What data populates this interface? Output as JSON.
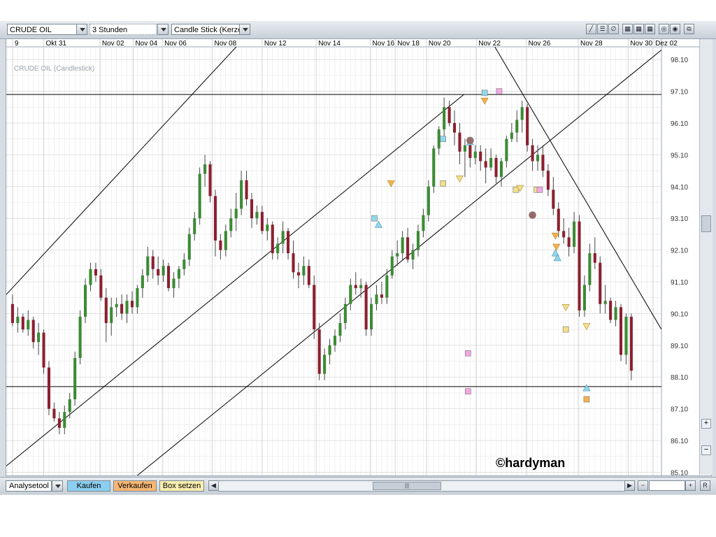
{
  "toolbar": {
    "symbol": "CRUDE OIL",
    "interval": "3 Stunden",
    "chart_type": "Candle Stick (Kerze"
  },
  "series_label": "CRUDE OIL (Candlestick)",
  "watermark": "©hardyman",
  "bottom": {
    "analysis_tool": "Analysetool",
    "buy": "Kaufen",
    "sell": "Verkaufen",
    "box": "Box setzen",
    "reset": "R"
  },
  "colors": {
    "up": "#3c8a35",
    "down": "#8b2030",
    "grid": "#e8e8e8",
    "marker_cyan": "#8fd8ec",
    "marker_pink": "#f2a8e2",
    "marker_orange": "#f4b24a",
    "marker_yellow": "#f1df8a",
    "marker_brown": "#9a6a6a"
  },
  "chart_data": {
    "type": "candlestick",
    "ylim": [
      85.0,
      98.5
    ],
    "xlim": [
      -0.3,
      31.2
    ],
    "yticks": [
      "85.10",
      "86.10",
      "87.10",
      "88.10",
      "89.10",
      "90.10",
      "91.10",
      "92.10",
      "93.10",
      "94.10",
      "95.10",
      "96.10",
      "97.10",
      "98.10"
    ],
    "xtick_labels": [
      {
        "t": 0,
        "label": "9"
      },
      {
        "t": 1.5,
        "label": "Okt 31"
      },
      {
        "t": 4.2,
        "label": "Nov 02"
      },
      {
        "t": 5.8,
        "label": "Nov 04"
      },
      {
        "t": 7.2,
        "label": "Nov 06"
      },
      {
        "t": 9.6,
        "label": "Nov 08"
      },
      {
        "t": 12.0,
        "label": "Nov 12"
      },
      {
        "t": 14.6,
        "label": "Nov 14"
      },
      {
        "t": 17.2,
        "label": "Nov 16"
      },
      {
        "t": 18.4,
        "label": "Nov 18"
      },
      {
        "t": 19.9,
        "label": "Nov 20"
      },
      {
        "t": 22.3,
        "label": "Nov 22"
      },
      {
        "t": 24.7,
        "label": "Nov 26"
      },
      {
        "t": 27.2,
        "label": "Nov 28"
      },
      {
        "t": 29.6,
        "label": "Nov 30"
      },
      {
        "t": 30.8,
        "label": "Dez 02"
      }
    ],
    "candles": [
      [
        0.0,
        90.4,
        90.7,
        89.7,
        89.8
      ],
      [
        0.25,
        89.8,
        90.3,
        89.5,
        90.0
      ],
      [
        0.5,
        90.0,
        90.1,
        89.5,
        89.6
      ],
      [
        0.75,
        89.6,
        90.2,
        89.4,
        89.9
      ],
      [
        1.0,
        89.9,
        90.0,
        89.0,
        89.2
      ],
      [
        1.25,
        89.2,
        89.8,
        88.8,
        89.5
      ],
      [
        1.5,
        89.5,
        89.6,
        88.2,
        88.4
      ],
      [
        1.75,
        88.4,
        88.6,
        86.9,
        87.1
      ],
      [
        2.0,
        87.1,
        87.3,
        86.7,
        86.8
      ],
      [
        2.25,
        86.8,
        87.0,
        86.3,
        86.5
      ],
      [
        2.5,
        86.5,
        87.2,
        86.3,
        87.0
      ],
      [
        2.75,
        87.0,
        87.6,
        86.8,
        87.4
      ],
      [
        3.0,
        87.4,
        88.9,
        87.2,
        88.7
      ],
      [
        3.25,
        88.7,
        90.2,
        88.5,
        90.0
      ],
      [
        3.5,
        90.0,
        91.2,
        89.8,
        91.0
      ],
      [
        3.75,
        91.0,
        91.7,
        90.8,
        91.5
      ],
      [
        4.0,
        91.5,
        91.7,
        91.1,
        91.3
      ],
      [
        4.25,
        91.3,
        91.5,
        90.5,
        90.6
      ],
      [
        4.5,
        90.6,
        90.9,
        89.2,
        89.8
      ],
      [
        4.75,
        89.8,
        90.6,
        89.4,
        90.3
      ],
      [
        5.0,
        90.3,
        90.6,
        90.0,
        90.4
      ],
      [
        5.25,
        90.4,
        90.7,
        89.9,
        90.1
      ],
      [
        5.5,
        90.1,
        90.7,
        89.8,
        90.5
      ],
      [
        5.75,
        90.5,
        90.8,
        90.1,
        90.3
      ],
      [
        6.0,
        90.3,
        91.0,
        90.1,
        90.9
      ],
      [
        6.25,
        90.9,
        91.5,
        90.6,
        91.3
      ],
      [
        6.5,
        91.3,
        92.2,
        91.1,
        91.9
      ],
      [
        6.75,
        91.9,
        92.1,
        91.2,
        91.5
      ],
      [
        7.0,
        91.5,
        91.9,
        91.0,
        91.3
      ],
      [
        7.25,
        91.3,
        91.8,
        91.1,
        91.6
      ],
      [
        7.5,
        91.6,
        91.7,
        90.8,
        90.9
      ],
      [
        7.75,
        90.9,
        91.4,
        90.6,
        91.2
      ],
      [
        8.0,
        91.2,
        91.6,
        90.9,
        91.5
      ],
      [
        8.25,
        91.5,
        92.0,
        91.3,
        91.8
      ],
      [
        8.5,
        91.8,
        92.8,
        91.6,
        92.6
      ],
      [
        8.75,
        92.6,
        93.3,
        92.4,
        93.1
      ],
      [
        9.0,
        93.1,
        94.7,
        92.9,
        94.5
      ],
      [
        9.25,
        94.5,
        95.1,
        94.1,
        94.8
      ],
      [
        9.5,
        94.8,
        94.9,
        93.6,
        93.8
      ],
      [
        9.75,
        93.8,
        94.0,
        91.9,
        92.4
      ],
      [
        10.0,
        92.4,
        92.6,
        91.8,
        92.1
      ],
      [
        10.25,
        92.1,
        92.9,
        91.9,
        92.7
      ],
      [
        10.5,
        92.7,
        93.4,
        92.5,
        93.1
      ],
      [
        10.75,
        93.1,
        93.9,
        92.7,
        93.4
      ],
      [
        11.0,
        93.4,
        94.6,
        93.2,
        94.3
      ],
      [
        11.25,
        94.3,
        94.6,
        93.5,
        93.7
      ],
      [
        11.5,
        93.7,
        93.9,
        92.8,
        93.1
      ],
      [
        11.75,
        93.1,
        93.5,
        92.9,
        93.3
      ],
      [
        12.0,
        93.3,
        93.5,
        92.6,
        92.7
      ],
      [
        12.25,
        92.7,
        93.1,
        92.4,
        92.9
      ],
      [
        12.5,
        92.9,
        93.0,
        91.8,
        92.0
      ],
      [
        12.75,
        92.0,
        92.5,
        91.8,
        92.3
      ],
      [
        13.0,
        92.3,
        93.0,
        92.0,
        92.7
      ],
      [
        13.25,
        92.7,
        92.8,
        91.8,
        92.0
      ],
      [
        13.5,
        92.0,
        92.4,
        91.2,
        91.4
      ],
      [
        13.75,
        91.4,
        91.7,
        90.9,
        91.3
      ],
      [
        14.0,
        91.3,
        91.9,
        91.0,
        91.6
      ],
      [
        14.25,
        91.6,
        91.8,
        90.9,
        91.0
      ],
      [
        14.5,
        91.0,
        91.3,
        89.3,
        89.6
      ],
      [
        14.75,
        89.6,
        89.8,
        88.0,
        88.2
      ],
      [
        15.0,
        88.2,
        89.0,
        88.0,
        88.8
      ],
      [
        15.25,
        88.8,
        89.3,
        88.5,
        89.1
      ],
      [
        15.5,
        89.1,
        89.6,
        88.9,
        89.4
      ],
      [
        15.75,
        89.4,
        90.1,
        89.2,
        89.8
      ],
      [
        16.0,
        89.8,
        90.6,
        89.6,
        90.4
      ],
      [
        16.25,
        90.4,
        91.2,
        90.2,
        91.0
      ],
      [
        16.5,
        91.0,
        91.4,
        90.7,
        90.9
      ],
      [
        16.75,
        90.9,
        91.2,
        90.6,
        91.0
      ],
      [
        17.0,
        91.0,
        91.1,
        89.4,
        89.6
      ],
      [
        17.25,
        89.6,
        90.6,
        89.4,
        90.4
      ],
      [
        17.5,
        90.4,
        91.0,
        90.2,
        90.7
      ],
      [
        17.75,
        90.7,
        91.1,
        90.4,
        90.6
      ],
      [
        18.0,
        90.6,
        91.5,
        90.4,
        91.3
      ],
      [
        18.25,
        91.3,
        92.1,
        91.2,
        91.9
      ],
      [
        18.5,
        91.9,
        92.4,
        91.6,
        92.0
      ],
      [
        18.75,
        92.0,
        92.7,
        91.8,
        92.5
      ],
      [
        19.0,
        92.5,
        92.8,
        91.7,
        91.8
      ],
      [
        19.25,
        91.8,
        92.3,
        91.5,
        92.1
      ],
      [
        19.5,
        92.1,
        92.9,
        91.9,
        92.7
      ],
      [
        19.75,
        92.7,
        93.4,
        92.5,
        93.2
      ],
      [
        20.0,
        93.2,
        94.3,
        93.0,
        94.1
      ],
      [
        20.25,
        94.1,
        95.4,
        93.9,
        95.3
      ],
      [
        20.5,
        95.3,
        96.0,
        95.1,
        95.9
      ],
      [
        20.75,
        95.9,
        96.9,
        95.7,
        96.6
      ],
      [
        21.0,
        96.6,
        96.8,
        96.0,
        96.1
      ],
      [
        21.25,
        96.1,
        96.5,
        95.4,
        95.8
      ],
      [
        21.5,
        95.8,
        96.1,
        94.8,
        95.2
      ],
      [
        21.75,
        95.2,
        95.6,
        94.4,
        95.4
      ],
      [
        22.0,
        95.4,
        95.6,
        94.7,
        95.0
      ],
      [
        22.25,
        95.0,
        95.4,
        94.8,
        95.2
      ],
      [
        22.5,
        95.2,
        95.4,
        94.6,
        94.9
      ],
      [
        22.75,
        94.9,
        95.3,
        94.2,
        94.7
      ],
      [
        23.0,
        94.7,
        95.3,
        94.6,
        95.0
      ],
      [
        23.25,
        95.0,
        95.1,
        94.2,
        94.4
      ],
      [
        23.5,
        94.4,
        95.0,
        94.1,
        94.9
      ],
      [
        23.75,
        94.9,
        95.7,
        94.7,
        95.6
      ],
      [
        24.0,
        95.6,
        96.1,
        95.5,
        95.8
      ],
      [
        24.25,
        95.8,
        96.5,
        95.5,
        96.2
      ],
      [
        24.5,
        96.2,
        96.8,
        95.8,
        96.6
      ],
      [
        24.75,
        96.6,
        96.7,
        95.2,
        95.4
      ],
      [
        25.0,
        95.4,
        95.6,
        94.6,
        94.9
      ],
      [
        25.25,
        94.9,
        95.4,
        94.6,
        95.1
      ],
      [
        25.5,
        95.1,
        95.4,
        94.4,
        94.6
      ],
      [
        25.75,
        94.6,
        94.8,
        93.8,
        94.0
      ],
      [
        26.0,
        94.0,
        94.4,
        93.2,
        93.4
      ],
      [
        26.25,
        93.4,
        93.6,
        92.5,
        92.7
      ],
      [
        26.5,
        92.7,
        93.1,
        92.3,
        92.5
      ],
      [
        26.75,
        92.5,
        92.8,
        91.9,
        92.2
      ],
      [
        27.0,
        92.2,
        93.3,
        92.0,
        93.0
      ],
      [
        27.25,
        93.0,
        93.2,
        90.0,
        90.2
      ],
      [
        27.5,
        90.2,
        91.3,
        90.0,
        91.0
      ],
      [
        27.75,
        91.0,
        92.3,
        90.8,
        92.0
      ],
      [
        28.0,
        92.0,
        92.5,
        91.5,
        91.7
      ],
      [
        28.25,
        91.7,
        91.9,
        90.1,
        90.4
      ],
      [
        28.5,
        90.4,
        91.0,
        90.1,
        90.5
      ],
      [
        28.75,
        90.5,
        90.6,
        89.8,
        89.9
      ],
      [
        29.0,
        89.9,
        90.5,
        89.7,
        90.3
      ],
      [
        29.25,
        90.3,
        90.4,
        88.6,
        88.8
      ],
      [
        29.5,
        88.8,
        90.1,
        88.5,
        90.0
      ],
      [
        29.75,
        90.0,
        90.1,
        88.0,
        88.3
      ]
    ],
    "horizontal_lines": [
      97.0,
      87.8
    ],
    "trend_lines": [
      {
        "t1": -0.3,
        "p1": 90.7,
        "t2": 10.9,
        "p2": 98.6
      },
      {
        "t1": -0.3,
        "p1": 85.3,
        "t2": 21.7,
        "p2": 97.0
      },
      {
        "t1": 6.0,
        "p1": 85.0,
        "t2": 31.2,
        "p2": 98.4
      },
      {
        "t1": 23.1,
        "p1": 98.6,
        "t2": 31.2,
        "p2": 89.6
      }
    ],
    "markers": [
      {
        "t": 17.4,
        "p": 93.1,
        "shape": "square",
        "color": "cyan"
      },
      {
        "t": 17.6,
        "p": 92.9,
        "shape": "tri-up",
        "color": "cyan"
      },
      {
        "t": 18.2,
        "p": 94.2,
        "shape": "tri-down",
        "color": "orange"
      },
      {
        "t": 20.7,
        "p": 95.6,
        "shape": "square",
        "color": "cyan"
      },
      {
        "t": 20.7,
        "p": 94.2,
        "shape": "square",
        "color": "yellow"
      },
      {
        "t": 21.5,
        "p": 94.35,
        "shape": "tri-down",
        "color": "yellow"
      },
      {
        "t": 22.0,
        "p": 95.5,
        "shape": "tri-up",
        "color": "cyan"
      },
      {
        "t": 22.0,
        "p": 95.55,
        "shape": "circle",
        "color": "brown"
      },
      {
        "t": 21.9,
        "p": 88.85,
        "shape": "square",
        "color": "pink"
      },
      {
        "t": 21.9,
        "p": 87.65,
        "shape": "square",
        "color": "pink"
      },
      {
        "t": 22.7,
        "p": 97.05,
        "shape": "square",
        "color": "cyan"
      },
      {
        "t": 22.7,
        "p": 96.8,
        "shape": "tri-down",
        "color": "orange"
      },
      {
        "t": 23.4,
        "p": 97.1,
        "shape": "square",
        "color": "pink"
      },
      {
        "t": 24.2,
        "p": 94.0,
        "shape": "square",
        "color": "yellow"
      },
      {
        "t": 24.4,
        "p": 94.05,
        "shape": "tri-down",
        "color": "yellow"
      },
      {
        "t": 25.2,
        "p": 94.0,
        "shape": "square",
        "color": "yellow"
      },
      {
        "t": 25.35,
        "p": 94.0,
        "shape": "square",
        "color": "pink"
      },
      {
        "t": 25.0,
        "p": 93.2,
        "shape": "circle",
        "color": "brown"
      },
      {
        "t": 26.1,
        "p": 92.55,
        "shape": "tri-down",
        "color": "orange"
      },
      {
        "t": 26.15,
        "p": 92.2,
        "shape": "tri-down",
        "color": "orange"
      },
      {
        "t": 26.1,
        "p": 92.0,
        "shape": "tri-up",
        "color": "cyan"
      },
      {
        "t": 26.2,
        "p": 91.85,
        "shape": "tri-up",
        "color": "cyan"
      },
      {
        "t": 26.6,
        "p": 90.3,
        "shape": "tri-down",
        "color": "yellow"
      },
      {
        "t": 26.6,
        "p": 89.6,
        "shape": "square",
        "color": "yellow"
      },
      {
        "t": 27.6,
        "p": 89.7,
        "shape": "tri-down",
        "color": "yellow"
      },
      {
        "t": 27.6,
        "p": 87.75,
        "shape": "tri-up",
        "color": "cyan"
      },
      {
        "t": 27.6,
        "p": 87.4,
        "shape": "square",
        "color": "orange"
      }
    ]
  }
}
